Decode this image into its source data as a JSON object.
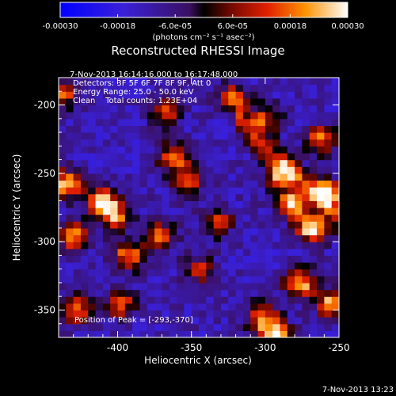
{
  "chart_data": {
    "type": "heatmap",
    "title": "Reconstructed RHESSI Image",
    "xlabel": "Heliocentric X (arcsec)",
    "ylabel": "Heliocentric Y (arcsec)",
    "xlim": [
      -440,
      -250
    ],
    "ylim": [
      -370,
      -180
    ],
    "x_ticks": [
      -400,
      -350,
      -300,
      -250
    ],
    "y_ticks": [
      -200,
      -250,
      -300,
      -350
    ],
    "colorbar": {
      "range": [
        -0.0003,
        0.0003
      ],
      "tick_values": [
        -0.0003,
        -0.00018,
        -6e-05,
        6e-05,
        0.00018,
        0.0003
      ],
      "tick_labels": [
        "-0.00030",
        "-0.00018",
        "-6.0e-05",
        "6.0e-05",
        "0.00018",
        "0.00030"
      ],
      "unit_label": "(photons cm⁻² s⁻¹ asec⁻²)"
    },
    "annotations": [
      "7-Nov-2013 16:14:16.000 to 16:17:48.000",
      "Detectors: 3F 5F 6F 7F 8F 9F, Att 0",
      "Energy Range: 25.0 - 50.0 keV",
      "Clean    Total counts: 1.23E+04"
    ],
    "peak_label": "Position of Peak = [-293,-370]",
    "peak": [
      -293,
      -370
    ],
    "sources": [
      {
        "x": -435,
        "y": -258,
        "value": 0.00026
      },
      {
        "x": -410,
        "y": -270,
        "value": 0.00024
      },
      {
        "x": -430,
        "y": -296,
        "value": 0.0002
      },
      {
        "x": -402,
        "y": -282,
        "value": 0.00018
      },
      {
        "x": -393,
        "y": -310,
        "value": 0.0002
      },
      {
        "x": -372,
        "y": -295,
        "value": 0.00018
      },
      {
        "x": -362,
        "y": -238,
        "value": 0.00018
      },
      {
        "x": -352,
        "y": -255,
        "value": 0.00014
      },
      {
        "x": -438,
        "y": -192,
        "value": 0.00016
      },
      {
        "x": -428,
        "y": -350,
        "value": 0.00018
      },
      {
        "x": -398,
        "y": -345,
        "value": 0.00014
      },
      {
        "x": -290,
        "y": -250,
        "value": 0.0002
      },
      {
        "x": -282,
        "y": -272,
        "value": 0.00028
      },
      {
        "x": -268,
        "y": -290,
        "value": 0.0003
      },
      {
        "x": -258,
        "y": -264,
        "value": 0.00022
      },
      {
        "x": -276,
        "y": -330,
        "value": 0.00024
      },
      {
        "x": -255,
        "y": -345,
        "value": 0.00024
      },
      {
        "x": -302,
        "y": -355,
        "value": 0.0002
      },
      {
        "x": -293,
        "y": -370,
        "value": 0.0003
      },
      {
        "x": -262,
        "y": -225,
        "value": 0.00018
      },
      {
        "x": -300,
        "y": -210,
        "value": 0.00014
      },
      {
        "x": -322,
        "y": -195,
        "value": 0.00016
      },
      {
        "x": -368,
        "y": -205,
        "value": 0.00012
      },
      {
        "x": -332,
        "y": -285,
        "value": 0.00012
      },
      {
        "x": -345,
        "y": -320,
        "value": 0.0001
      }
    ]
  },
  "footer": {
    "timestamp": "7-Nov-2013 13:23"
  }
}
